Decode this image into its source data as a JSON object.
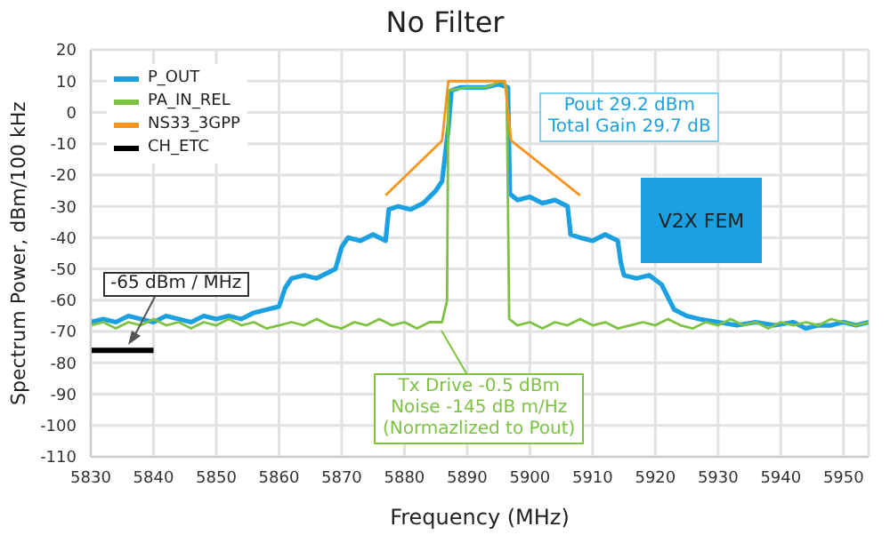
{
  "chart_data": {
    "type": "line",
    "title": "No Filter",
    "xlabel": "Frequency (MHz)",
    "ylabel": "Spectrum Power, dBm/100 kHz",
    "xlim": [
      5830,
      5954
    ],
    "xticks": [
      5830,
      5840,
      5850,
      5860,
      5870,
      5880,
      5890,
      5900,
      5910,
      5920,
      5930,
      5940,
      5950
    ],
    "ylim": [
      -110,
      20
    ],
    "yticks": [
      -110,
      -100,
      -90,
      -80,
      -70,
      -60,
      -50,
      -40,
      -30,
      -20,
      -10,
      0,
      10,
      20
    ],
    "grid": true,
    "legend": "top left",
    "marker": "none",
    "line_style": "solid",
    "series": [
      {
        "name": "P_OUT",
        "color": "#1ba1e2",
        "x": [
          5830,
          5832,
          5834,
          5836,
          5838,
          5840,
          5842,
          5844,
          5846,
          5848,
          5850,
          5852,
          5854,
          5856,
          5858,
          5860,
          5861,
          5862,
          5864,
          5866,
          5868,
          5869,
          5870,
          5871,
          5873,
          5875,
          5877,
          5877.5,
          5879,
          5881,
          5883,
          5885,
          5886,
          5887,
          5887.5,
          5889,
          5891,
          5893,
          5895,
          5896.5,
          5896.8,
          5898,
          5900,
          5902,
          5904,
          5906,
          5906.5,
          5908,
          5910,
          5912,
          5914,
          5914.5,
          5915,
          5917,
          5919,
          5921,
          5923,
          5925,
          5927,
          5930,
          5933,
          5936,
          5939,
          5942,
          5944,
          5946,
          5948,
          5950,
          5952,
          5954
        ],
        "values": [
          -67,
          -66,
          -67,
          -65,
          -66,
          -67,
          -65,
          -66,
          -67,
          -65,
          -66,
          -65,
          -66,
          -64,
          -63,
          -62,
          -56,
          -53,
          -52,
          -53,
          -51,
          -50,
          -43,
          -40,
          -41,
          -39,
          -41,
          -31,
          -30,
          -31,
          -29,
          -25,
          -22,
          -5,
          7,
          8,
          8,
          8,
          9,
          8,
          -26,
          -28,
          -27,
          -29,
          -28,
          -30,
          -39,
          -40,
          -41,
          -39,
          -41,
          -48,
          -52,
          -53,
          -52,
          -55,
          -63,
          -65,
          -66,
          -67,
          -68,
          -67,
          -68,
          -67,
          -69,
          -68,
          -68,
          -67,
          -68,
          -67
        ]
      },
      {
        "name": "PA_IN_REL",
        "color": "#7dc242",
        "x": [
          5830,
          5832,
          5834,
          5836,
          5838,
          5840,
          5842,
          5844,
          5846,
          5848,
          5850,
          5852,
          5854,
          5856,
          5858,
          5860,
          5862,
          5864,
          5866,
          5868,
          5870,
          5872,
          5874,
          5876,
          5878,
          5880,
          5882,
          5884,
          5886,
          5886.8,
          5887,
          5890,
          5893,
          5895.5,
          5896.3,
          5896.7,
          5898,
          5900,
          5902,
          5904,
          5906,
          5908,
          5910,
          5912,
          5914,
          5916,
          5918,
          5920,
          5922,
          5924,
          5926,
          5928,
          5930,
          5932,
          5934,
          5936,
          5938,
          5940,
          5942,
          5944,
          5946,
          5948,
          5950,
          5952,
          5954
        ],
        "values": [
          -68,
          -67,
          -69,
          -67,
          -68,
          -66,
          -68,
          -67,
          -69,
          -67,
          -68,
          -66,
          -68,
          -67,
          -69,
          -68,
          -67,
          -68,
          -66,
          -68,
          -69,
          -67,
          -68,
          -66,
          -68,
          -67,
          -69,
          -67,
          -67,
          -60,
          7,
          8,
          8,
          10,
          8,
          -66,
          -68,
          -67,
          -69,
          -67,
          -68,
          -66,
          -68,
          -67,
          -69,
          -68,
          -67,
          -68,
          -66,
          -68,
          -69,
          -67,
          -68,
          -66,
          -68,
          -67,
          -69,
          -67,
          -68,
          -67,
          -68,
          -66,
          -67,
          -68,
          -67
        ]
      },
      {
        "name": "NS33_3GPP",
        "color": "#f7941d",
        "x": [
          5877,
          5886,
          5887,
          5896,
          5897,
          5908
        ],
        "values": [
          -26.5,
          -9,
          10,
          10,
          -9,
          -26.5
        ]
      },
      {
        "name": "CH_ETC",
        "color": "#000000",
        "x": [
          5830,
          5840
        ],
        "values": [
          -76,
          -76
        ]
      }
    ],
    "annotations": [
      "-65 dBm / MHz",
      "Pout 29.2 dBm\nTotal Gain 29.7 dB",
      "V2X FEM",
      "Tx Drive -0.5 dBm\nNoise -145 dB m/Hz\n(Normazlized to Pout)"
    ]
  }
}
